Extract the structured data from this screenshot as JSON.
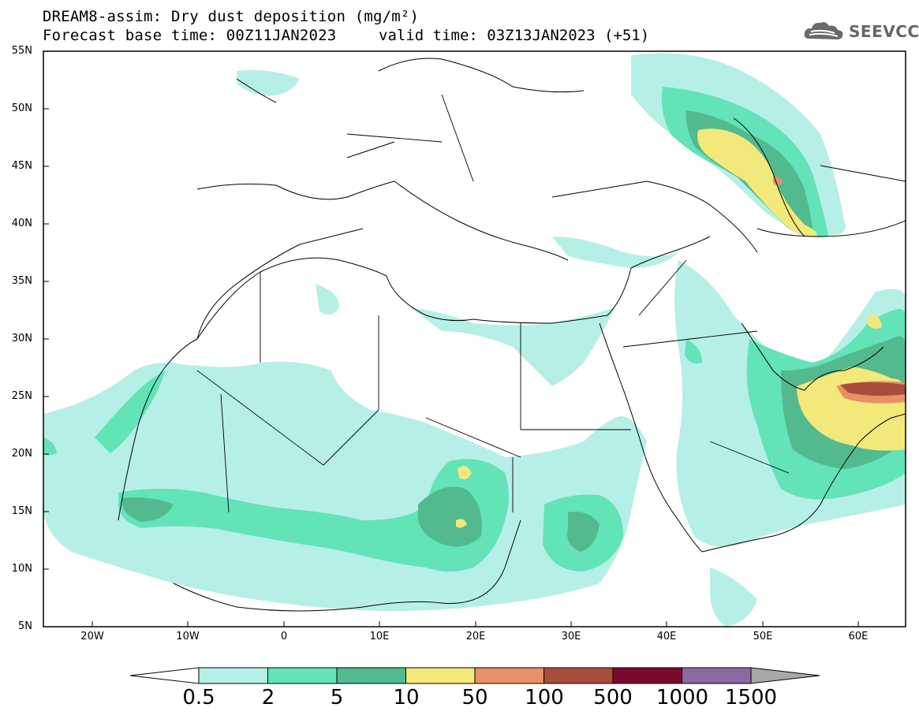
{
  "header": {
    "title": "DREAM8-assim: Dry dust deposition (mg/m²)",
    "base_time": "Forecast base time: 00Z11JAN2023",
    "valid_time": "valid time: 03Z13JAN2023 (+51)"
  },
  "logo": {
    "text": "SEEVCCC",
    "icon": "cloud-logo-icon"
  },
  "map": {
    "lat_labels": [
      "55N",
      "50N",
      "45N",
      "40N",
      "35N",
      "30N",
      "25N",
      "20N",
      "15N",
      "10N",
      "5N"
    ],
    "lon_labels": [
      "20W",
      "10W",
      "0",
      "10E",
      "20E",
      "30E",
      "40E",
      "50E",
      "60E"
    ],
    "extent": {
      "lon": [
        -25,
        65
      ],
      "lat": [
        5,
        55
      ]
    }
  },
  "colorbar": {
    "labels": [
      "0.5",
      "2",
      "5",
      "10",
      "50",
      "100",
      "500",
      "1000",
      "1500"
    ],
    "colors": [
      "#b6efe6",
      "#62e3b8",
      "#53b98f",
      "#f3e87a",
      "#e89068",
      "#a84c3c",
      "#7a0a2a",
      "#8a6aa0"
    ],
    "under_color": "#ffffff",
    "over_color": "#a8a8a8"
  }
}
